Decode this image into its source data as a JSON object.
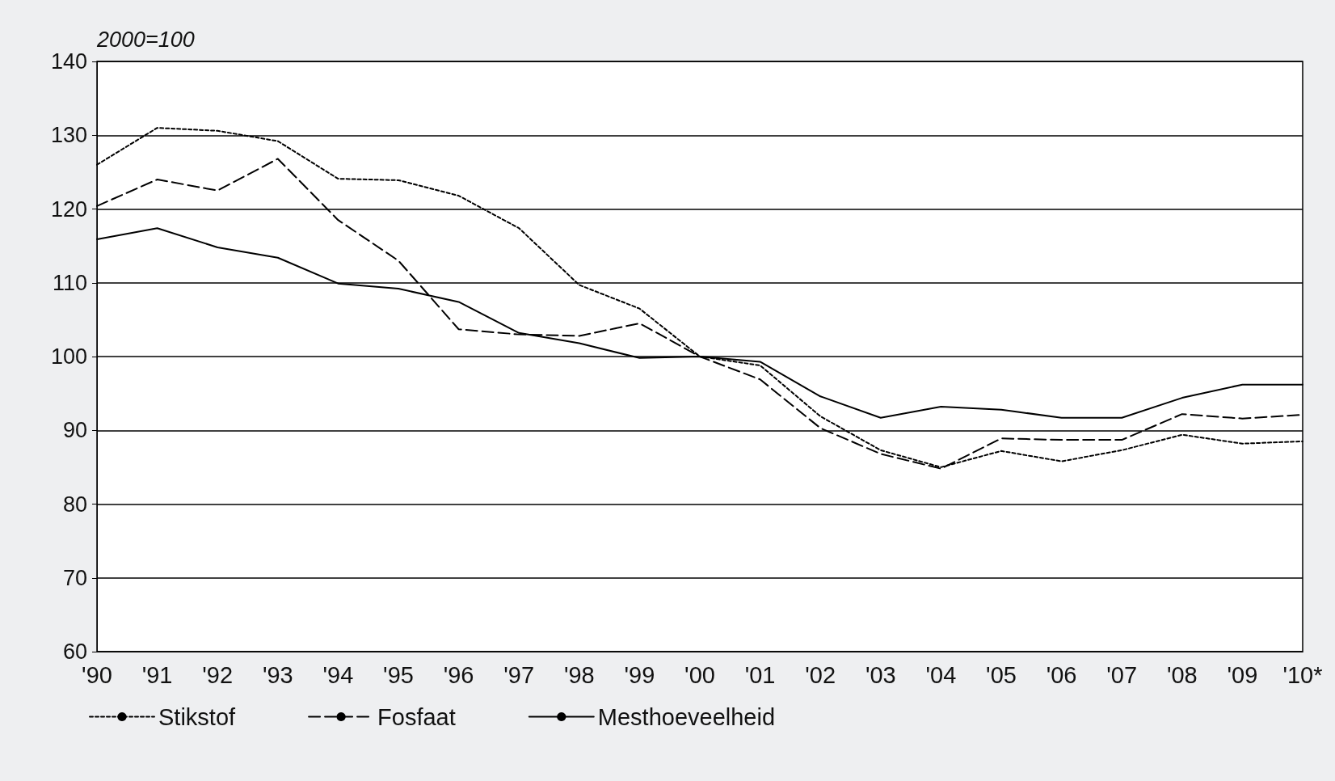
{
  "chart_data": {
    "type": "line",
    "ylabel": "2000=100",
    "categories": [
      "'90",
      "'91",
      "'92",
      "'93",
      "'94",
      "'95",
      "'96",
      "'97",
      "'98",
      "'99",
      "'00",
      "'01",
      "'02",
      "'03",
      "'04",
      "'05",
      "'06",
      "'07",
      "'08",
      "'09",
      "'10*"
    ],
    "series": [
      {
        "name": "Stikstof",
        "color": "#000000",
        "line_style": "dotted",
        "values": [
          126,
          131,
          130.6,
          129.2,
          124.1,
          123.9,
          121.8,
          117.4,
          109.7,
          106.5,
          100,
          98.8,
          91.9,
          87.3,
          85,
          87.2,
          85.8,
          87.3,
          89.4,
          88.2,
          88.5
        ]
      },
      {
        "name": "Fosfaat",
        "color": "#000000",
        "line_style": "dashed",
        "values": [
          120.4,
          124,
          122.5,
          126.8,
          118.5,
          113,
          103.7,
          103,
          102.8,
          104.5,
          100,
          96.9,
          90.3,
          86.8,
          84.8,
          88.9,
          88.7,
          88.7,
          92.2,
          91.6,
          92.1
        ]
      },
      {
        "name": "Mesthoeveelheid",
        "color": "#000000",
        "line_style": "solid",
        "values": [
          115.9,
          117.4,
          114.8,
          113.4,
          109.9,
          109.2,
          107.4,
          103.2,
          101.8,
          99.8,
          100,
          99.3,
          94.6,
          91.7,
          93.2,
          92.8,
          91.7,
          91.7,
          94.4,
          96.2,
          96.2
        ]
      }
    ],
    "ylim": [
      60,
      140
    ],
    "yticks": [
      60,
      70,
      80,
      90,
      100,
      110,
      120,
      130,
      140
    ],
    "grid": "y",
    "legend": "bottom",
    "marker": "none"
  }
}
